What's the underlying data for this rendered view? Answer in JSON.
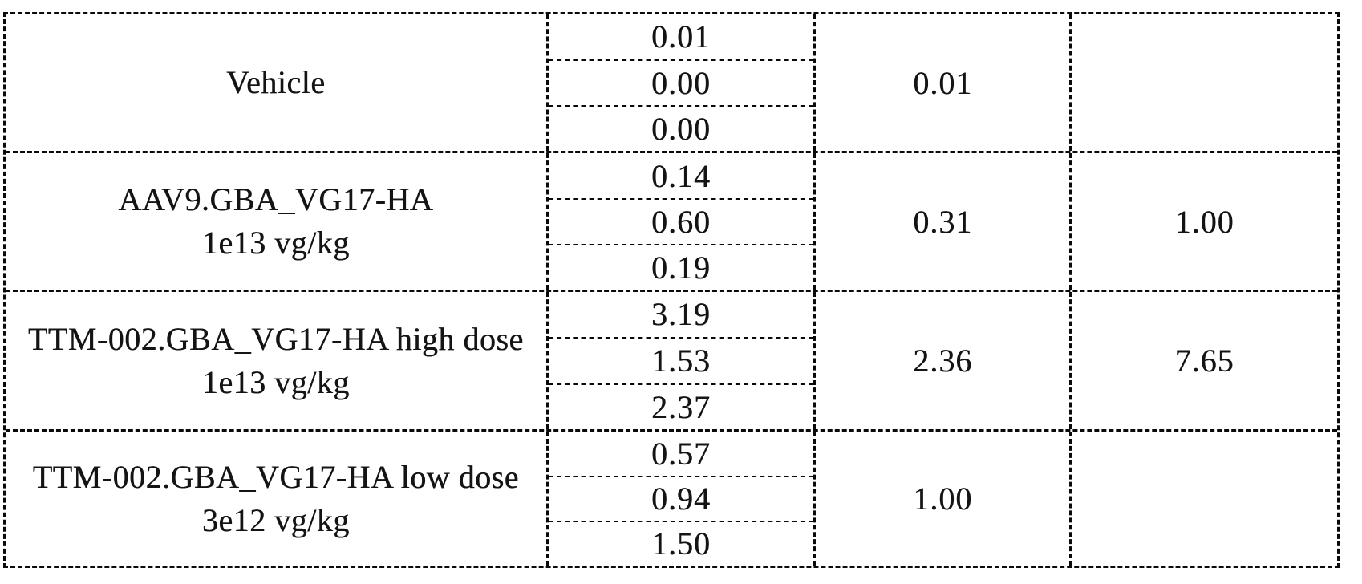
{
  "table": {
    "description": "dose-group results table with three individual values, group mean, and fold-change per group",
    "groups": [
      {
        "label_line1": "Vehicle",
        "label_line2": "",
        "values": [
          "0.01",
          "0.00",
          "0.00"
        ],
        "mean": "0.01",
        "fold": ""
      },
      {
        "label_line1": "AAV9.GBA_VG17-HA",
        "label_line2": "1e13 vg/kg",
        "values": [
          "0.14",
          "0.60",
          "0.19"
        ],
        "mean": "0.31",
        "fold": "1.00"
      },
      {
        "label_line1": "TTM-002.GBA_VG17-HA high dose",
        "label_line2": "1e13 vg/kg",
        "values": [
          "3.19",
          "1.53",
          "2.37"
        ],
        "mean": "2.36",
        "fold": "7.65"
      },
      {
        "label_line1": "TTM-002.GBA_VG17-HA low dose",
        "label_line2": "3e12 vg/kg",
        "values": [
          "0.57",
          "0.94",
          "1.50"
        ],
        "mean": "1.00",
        "fold": ""
      }
    ]
  }
}
